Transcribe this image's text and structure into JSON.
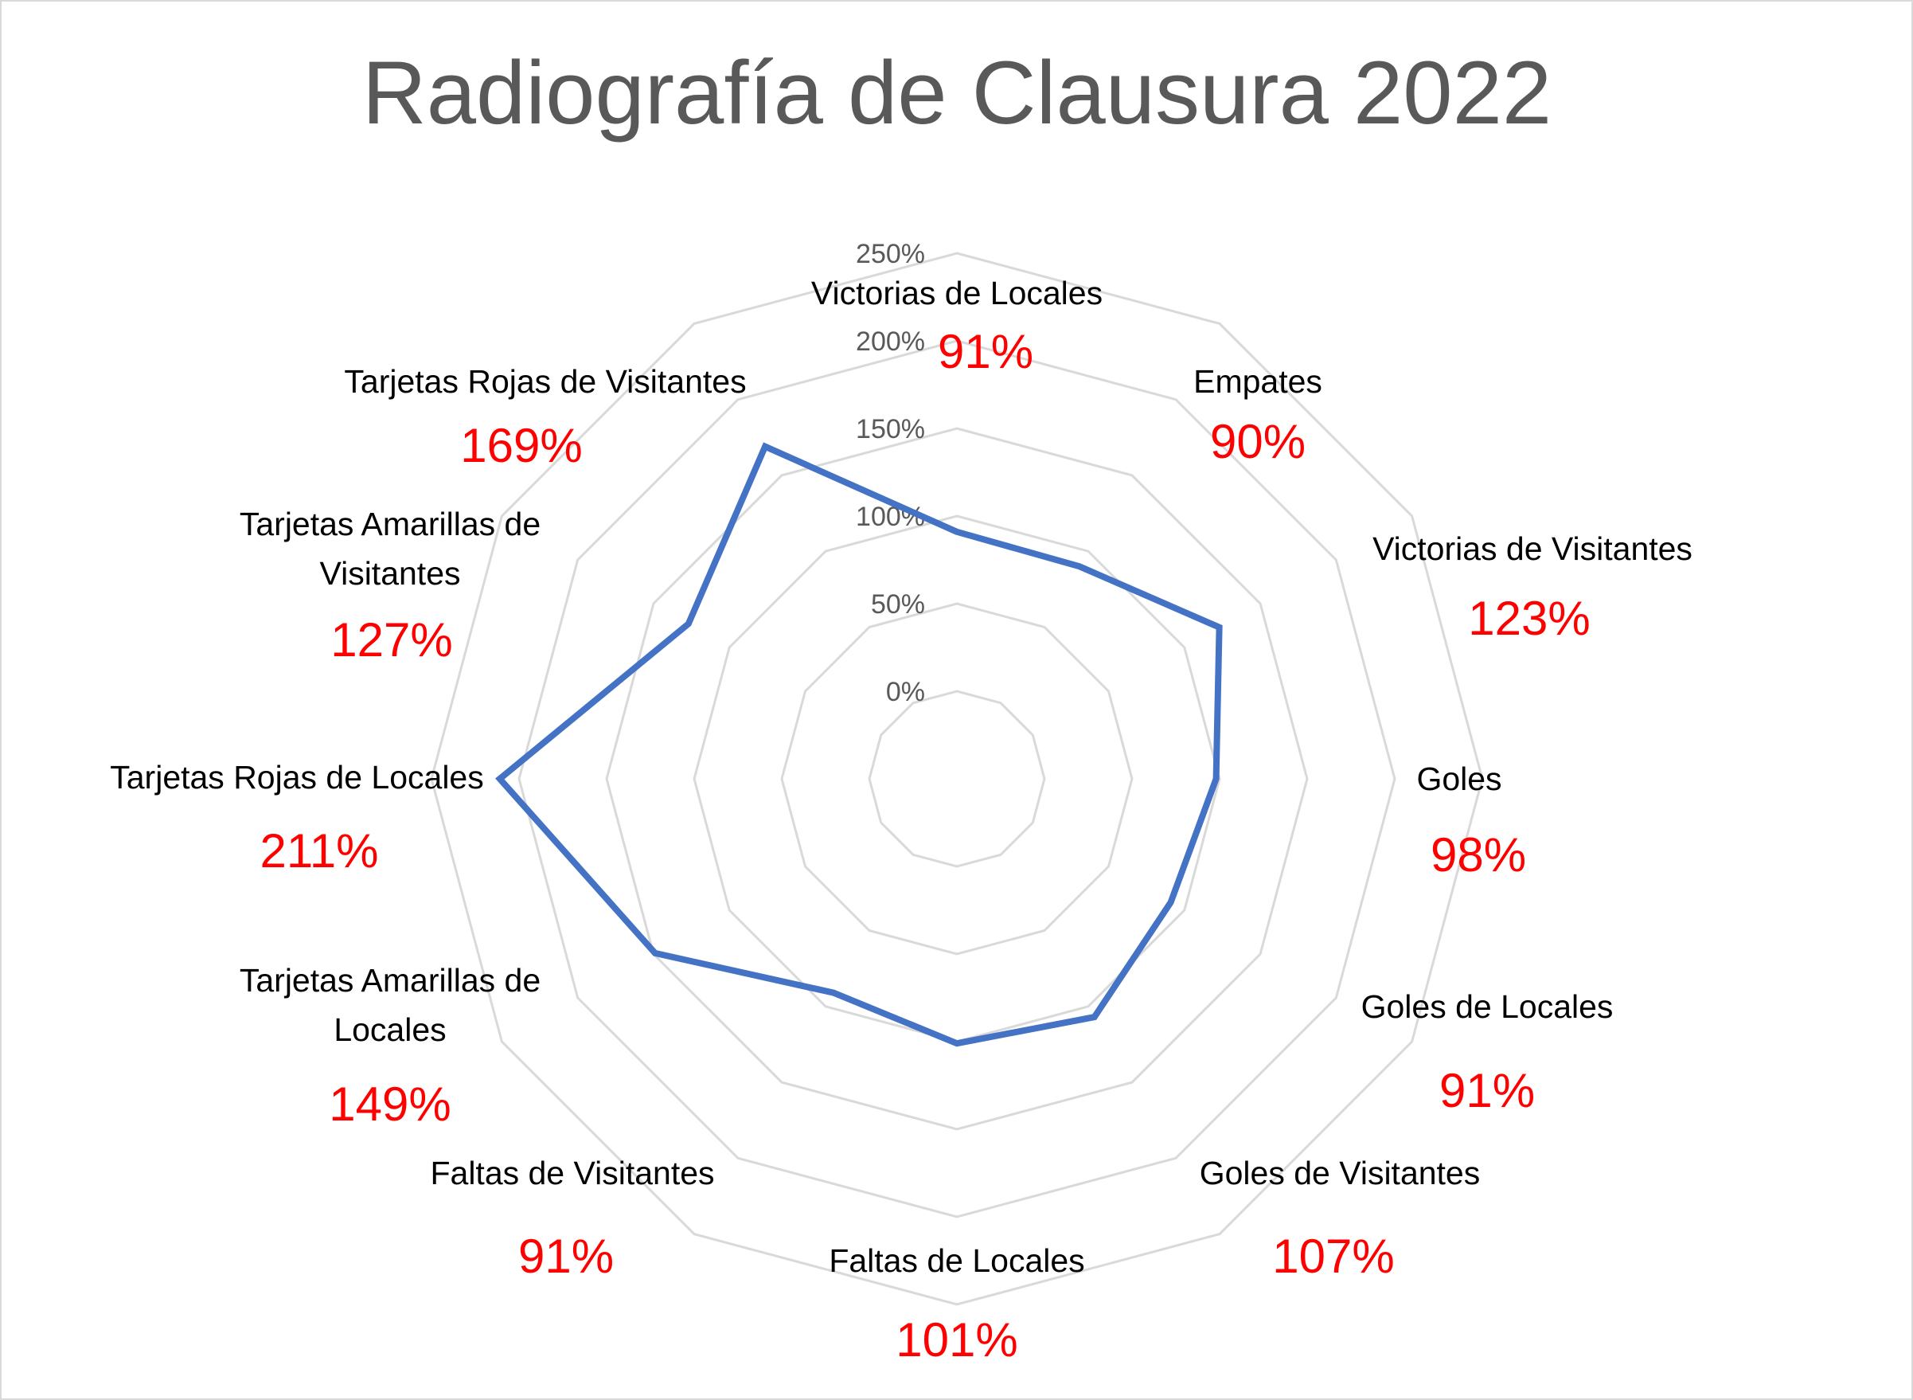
{
  "chart_data": {
    "type": "radar",
    "title": "Radiografía de Clausura 2022",
    "categories": [
      "Victorias de Locales",
      "Empates",
      "Victorias de Visitantes",
      "Goles",
      "Goles de Locales",
      "Goles de Visitantes",
      "Faltas de Locales",
      "Faltas de Visitantes",
      "Tarjetas Amarillas de Locales",
      "Tarjetas Rojas de Locales",
      "Tarjetas Amarillas de Visitantes",
      "Tarjetas Rojas de Visitantes"
    ],
    "values": [
      91,
      90,
      123,
      98,
      91,
      107,
      101,
      91,
      149,
      211,
      127,
      169
    ],
    "value_labels": [
      "91%",
      "90%",
      "123%",
      "98%",
      "91%",
      "107%",
      "101%",
      "91%",
      "149%",
      "211%",
      "127%",
      "169%"
    ],
    "axis_ticks": [
      "0%",
      "50%",
      "100%",
      "150%",
      "200%",
      "250%"
    ],
    "axis_tick_values": [
      0,
      50,
      100,
      150,
      200,
      250
    ],
    "rlim": [
      0,
      250
    ],
    "grid": true,
    "legend": "none",
    "colors": {
      "series_line": "#4472C4",
      "value_label": "#FF0000",
      "grid": "#d9d9d9",
      "title": "#595959",
      "category_label": "#000000",
      "tick_label": "#595959"
    }
  }
}
